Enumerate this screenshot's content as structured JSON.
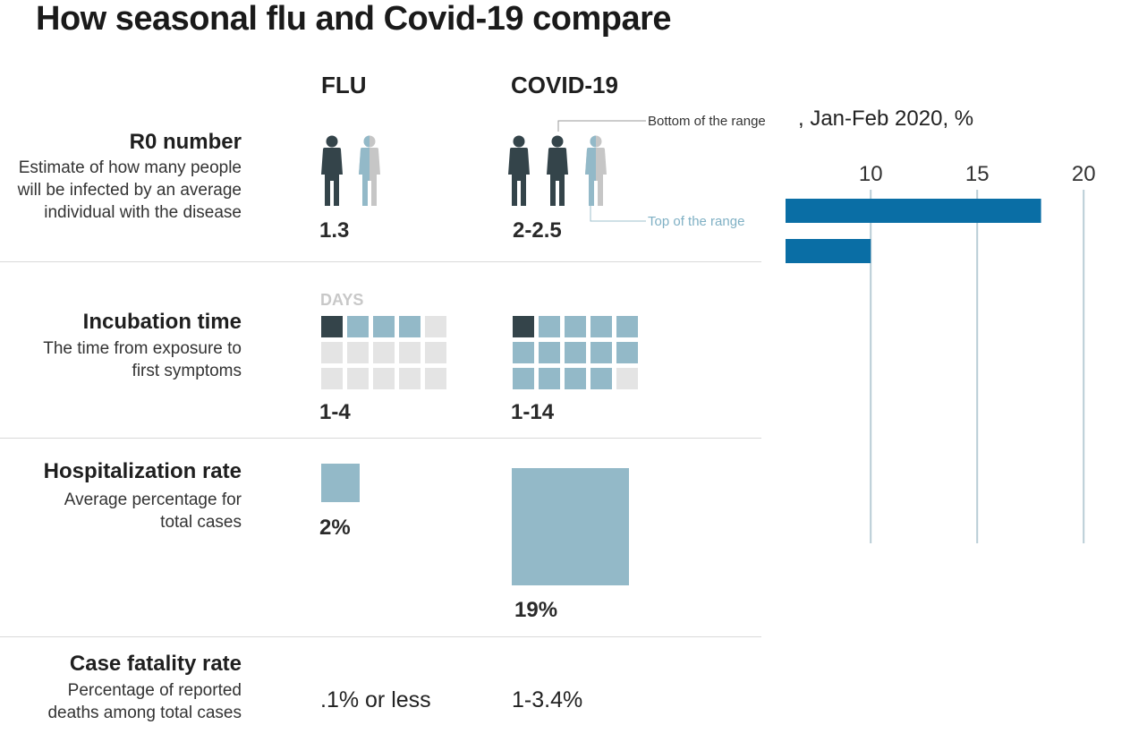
{
  "title": "How seasonal flu and Covid-19 compare",
  "columns": {
    "flu": "FLU",
    "covid": "COVID-19"
  },
  "colors": {
    "dark": "#34444a",
    "light": "#93b9c8",
    "grey": "#e4e4e4",
    "figure_grey": "#c6c6c6",
    "bar": "#0a6ea5",
    "grid": "#b9cdd6"
  },
  "rows": {
    "r0": {
      "title": "R0 number",
      "desc": [
        "Estimate of how many people",
        "will be infected by an average",
        "individual with the disease"
      ],
      "flu": "1.3",
      "covid": "2-2.5",
      "annotation_bottom": "Bottom of the range",
      "annotation_top": "Top of the range"
    },
    "incubation": {
      "title": "Incubation time",
      "desc": [
        "The time from exposure to",
        "first symptoms"
      ],
      "days_label": "DAYS",
      "flu": "1-4",
      "covid": "1-14",
      "flu_days_min": 1,
      "flu_days_max": 4,
      "covid_days_min": 1,
      "covid_days_max": 14,
      "grid_cells": 15
    },
    "hospitalization": {
      "title": "Hospitalization rate",
      "desc": [
        "Average percentage for",
        "total cases"
      ],
      "flu": "2%",
      "covid": "19%",
      "flu_value": 2,
      "covid_value": 19
    },
    "fatality": {
      "title": "Case fatality rate",
      "desc": [
        "Percentage of reported",
        "deaths among total cases"
      ],
      "flu": ".1% or less",
      "covid": "1-3.4%"
    }
  },
  "chart_data": {
    "type": "bar",
    "orientation": "horizontal",
    "title": ", Jan-Feb 2020, %",
    "categories": [
      "",
      ""
    ],
    "values": [
      18,
      10
    ],
    "xlim": [
      6,
      21
    ],
    "ticks": [
      10,
      15,
      20
    ],
    "tick_labels": [
      "10",
      "15",
      "20"
    ],
    "grid": true,
    "axis_position": "top"
  }
}
